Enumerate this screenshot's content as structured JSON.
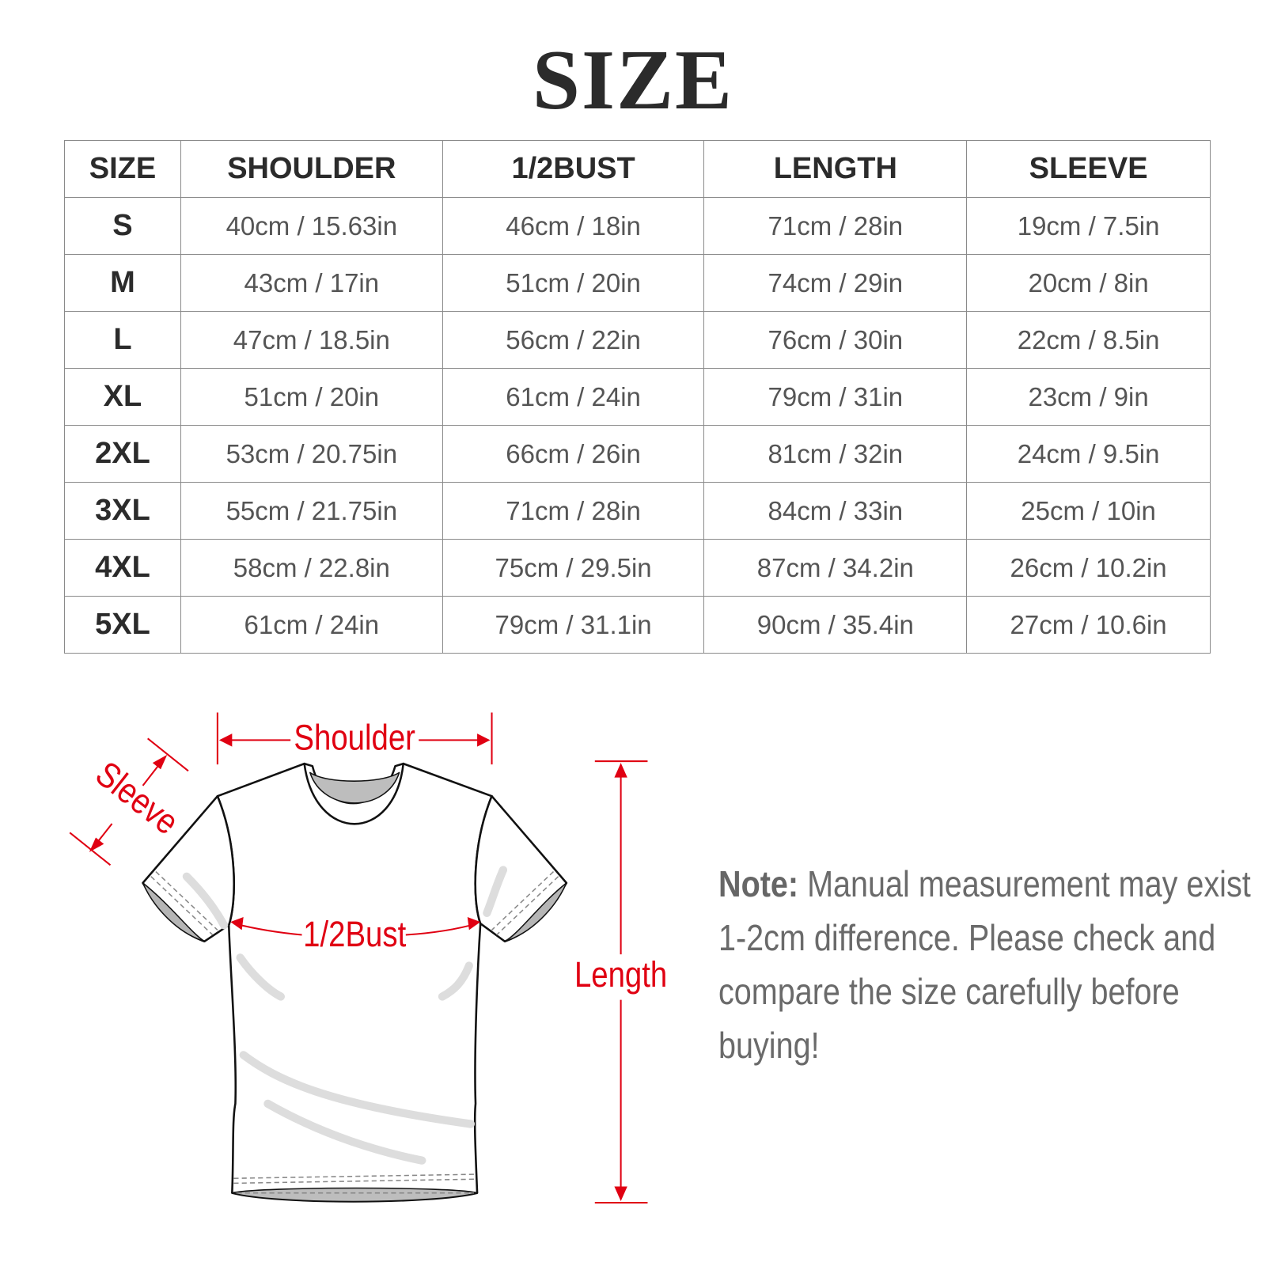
{
  "title": "SIZE",
  "table": {
    "headers": [
      "SIZE",
      "SHOULDER",
      "1/2BUST",
      "LENGTH",
      "SLEEVE"
    ],
    "rows": [
      [
        "S",
        "40cm / 15.63in",
        "46cm / 18in",
        "71cm / 28in",
        "19cm / 7.5in"
      ],
      [
        "M",
        "43cm / 17in",
        "51cm / 20in",
        "74cm / 29in",
        "20cm / 8in"
      ],
      [
        "L",
        "47cm / 18.5in",
        "56cm / 22in",
        "76cm / 30in",
        "22cm / 8.5in"
      ],
      [
        "XL",
        "51cm / 20in",
        "61cm / 24in",
        "79cm / 31in",
        "23cm / 9in"
      ],
      [
        "2XL",
        "53cm / 20.75in",
        "66cm / 26in",
        "81cm / 32in",
        "24cm / 9.5in"
      ],
      [
        "3XL",
        "55cm / 21.75in",
        "71cm / 28in",
        "84cm / 33in",
        "25cm / 10in"
      ],
      [
        "4XL",
        "58cm / 22.8in",
        "75cm / 29.5in",
        "87cm / 34.2in",
        "26cm / 10.2in"
      ],
      [
        "5XL",
        "61cm / 24in",
        "79cm / 31.1in",
        "90cm / 35.4in",
        "27cm / 10.6in"
      ]
    ]
  },
  "diagram": {
    "shoulder_label": "Shoulder",
    "sleeve_label": "Sleeve",
    "bust_label": "1/2Bust",
    "length_label": "Length",
    "accent_color": "#e00012"
  },
  "note": {
    "label": "Note:",
    "text": " Manual measurement may exist 1-2cm difference. Please check and compare the size carefully before buying!"
  }
}
